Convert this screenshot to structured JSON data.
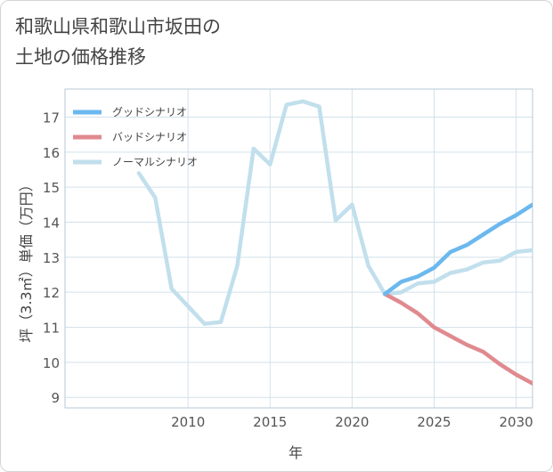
{
  "chart_data": {
    "type": "line",
    "title_lines": [
      "和歌山県和歌山市坂田の",
      "土地の価格推移"
    ],
    "xlabel": "年",
    "ylabel": "坪（3.3㎡）単価（万円）",
    "xlim": [
      2002.5,
      2031
    ],
    "ylim": [
      8.7,
      17.8
    ],
    "x_ticks": [
      2010,
      2015,
      2020,
      2025,
      2030
    ],
    "y_ticks": [
      9,
      10,
      11,
      12,
      13,
      14,
      15,
      16,
      17
    ],
    "grid": true,
    "legend_position": "top-left",
    "series": [
      {
        "name": "グッドシナリオ",
        "color": "#6bb8ee",
        "x": [
          2022,
          2023,
          2024,
          2025,
          2026,
          2027,
          2028,
          2029,
          2030,
          2031
        ],
        "values": [
          11.95,
          12.3,
          12.45,
          12.7,
          13.15,
          13.35,
          13.65,
          13.95,
          14.2,
          14.5
        ]
      },
      {
        "name": "バッドシナリオ",
        "color": "#e08a90",
        "x": [
          2022,
          2023,
          2024,
          2025,
          2026,
          2027,
          2028,
          2029,
          2030,
          2031
        ],
        "values": [
          11.95,
          11.7,
          11.4,
          11.0,
          10.75,
          10.5,
          10.3,
          9.95,
          9.65,
          9.4
        ]
      },
      {
        "name": "ノーマルシナリオ",
        "color": "#c1dfec",
        "x": [
          2007,
          2008,
          2009,
          2011,
          2012,
          2013,
          2014,
          2015,
          2016,
          2017,
          2018,
          2019,
          2020,
          2021,
          2022,
          2023,
          2024,
          2025,
          2026,
          2027,
          2028,
          2029,
          2030,
          2031
        ],
        "values": [
          15.4,
          14.7,
          12.1,
          11.1,
          11.15,
          12.75,
          16.1,
          15.65,
          17.35,
          17.45,
          17.3,
          14.05,
          14.5,
          12.75,
          11.95,
          12.0,
          12.25,
          12.3,
          12.55,
          12.65,
          12.85,
          12.9,
          13.15,
          13.2
        ]
      }
    ]
  }
}
